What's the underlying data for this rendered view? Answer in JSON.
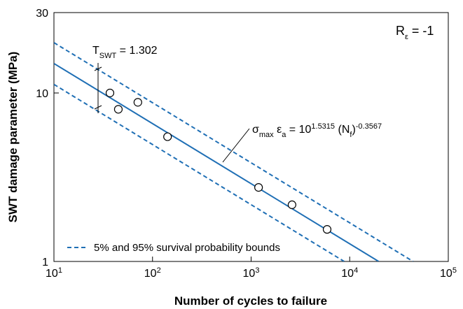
{
  "chart_data": {
    "type": "scatter",
    "x_label": "Number of cycles to failure",
    "y_label": "SWT damage parameter (MPa)",
    "log_x": true,
    "log_y": true,
    "xlim": [
      10,
      100000
    ],
    "ylim": [
      1,
      30
    ],
    "xticks": [
      {
        "value": 10,
        "label": "10",
        "exponent": "1"
      },
      {
        "value": 100,
        "label": "10",
        "exponent": "2"
      },
      {
        "value": 1000,
        "label": "10",
        "exponent": "3"
      },
      {
        "value": 10000,
        "label": "10",
        "exponent": "4"
      },
      {
        "value": 100000,
        "label": "10",
        "exponent": "5"
      }
    ],
    "yticks": [
      1,
      10,
      30
    ],
    "points": {
      "color": "#000000",
      "x": [
        37,
        45,
        71,
        142,
        1190,
        2600,
        5900
      ],
      "values": [
        10.0,
        8.0,
        8.8,
        5.5,
        2.75,
        2.17,
        1.55
      ]
    },
    "fit": {
      "color": "#1f6fb5",
      "x": [
        10,
        19670
      ],
      "values": [
        14.96,
        1
      ]
    },
    "bounds": {
      "name": "5% and 95% survival probability bounds",
      "color": "#1f6fb5",
      "upper": {
        "x": [
          10,
          44000
        ],
        "values": [
          19.9,
          1
        ]
      },
      "lower": {
        "x": [
          10,
          8800
        ],
        "values": [
          11.25,
          1
        ]
      }
    },
    "annotations": {
      "ratio": [
        "R",
        "ε",
        " = -1"
      ],
      "scatter_band": [
        "T",
        "SWT",
        " = 1.302"
      ],
      "equation": [
        "σ",
        "max",
        " ε",
        "a",
        " = 10",
        "1.5315",
        " (N",
        "f",
        ")",
        "-0.3567"
      ]
    }
  }
}
